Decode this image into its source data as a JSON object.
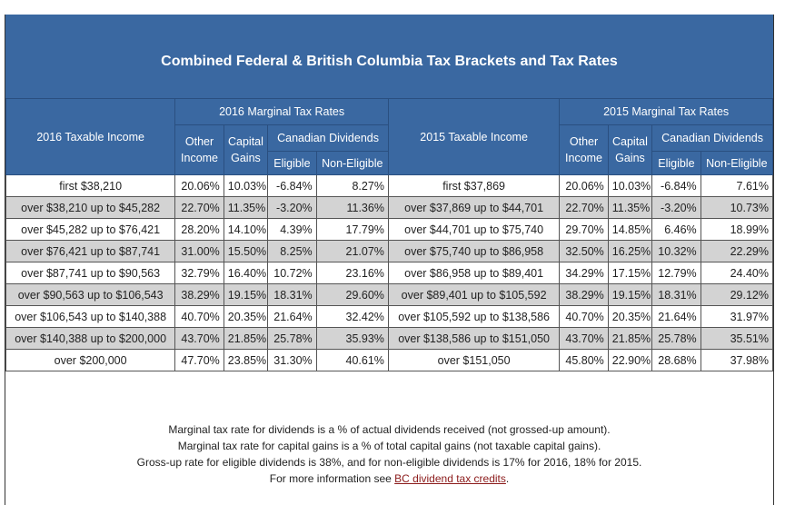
{
  "title": "Combined Federal & British Columbia Tax Brackets and Tax Rates",
  "headers": {
    "income_2016": "2016 Taxable Income",
    "rates_2016": "2016 Marginal Tax Rates",
    "income_2015": "2015 Taxable Income",
    "rates_2015": "2015 Marginal Tax Rates",
    "other_income_1": "Other",
    "other_income_2": "Income",
    "capital_gains_1": "Capital",
    "capital_gains_2": "Gains",
    "canadian_dividends": "Canadian Dividends",
    "eligible": "Eligible",
    "non_eligible": "Non-Eligible"
  },
  "rows": [
    {
      "inc16": "first $38,210",
      "o16": "20.06%",
      "c16": "10.03%",
      "e16": "-6.84%",
      "n16": "8.27%",
      "inc15": "first $37,869",
      "o15": "20.06%",
      "c15": "10.03%",
      "e15": "-6.84%",
      "n15": "7.61%"
    },
    {
      "inc16": "over $38,210 up to $45,282",
      "o16": "22.70%",
      "c16": "11.35%",
      "e16": "-3.20%",
      "n16": "11.36%",
      "inc15": "over $37,869 up to $44,701",
      "o15": "22.70%",
      "c15": "11.35%",
      "e15": "-3.20%",
      "n15": "10.73%"
    },
    {
      "inc16": "over $45,282 up to $76,421",
      "o16": "28.20%",
      "c16": "14.10%",
      "e16": "4.39%",
      "n16": "17.79%",
      "inc15": "over $44,701 up to $75,740",
      "o15": "29.70%",
      "c15": "14.85%",
      "e15": "6.46%",
      "n15": "18.99%"
    },
    {
      "inc16": "over $76,421 up to $87,741",
      "o16": "31.00%",
      "c16": "15.50%",
      "e16": "8.25%",
      "n16": "21.07%",
      "inc15": "over $75,740 up to $86,958",
      "o15": "32.50%",
      "c15": "16.25%",
      "e15": "10.32%",
      "n15": "22.29%"
    },
    {
      "inc16": "over $87,741 up to $90,563",
      "o16": "32.79%",
      "c16": "16.40%",
      "e16": "10.72%",
      "n16": "23.16%",
      "inc15": "over $86,958 up to $89,401",
      "o15": "34.29%",
      "c15": "17.15%",
      "e15": "12.79%",
      "n15": "24.40%"
    },
    {
      "inc16": "over $90,563 up to $106,543",
      "o16": "38.29%",
      "c16": "19.15%",
      "e16": "18.31%",
      "n16": "29.60%",
      "inc15": "over $89,401 up to $105,592",
      "o15": "38.29%",
      "c15": "19.15%",
      "e15": "18.31%",
      "n15": "29.12%"
    },
    {
      "inc16": "over $106,543 up to $140,388",
      "o16": "40.70%",
      "c16": "20.35%",
      "e16": "21.64%",
      "n16": "32.42%",
      "inc15": "over $105,592 up to $138,586",
      "o15": "40.70%",
      "c15": "20.35%",
      "e15": "21.64%",
      "n15": "31.97%"
    },
    {
      "inc16": "over $140,388 up to $200,000",
      "o16": "43.70%",
      "c16": "21.85%",
      "e16": "25.78%",
      "n16": "35.93%",
      "inc15": "over $138,586 up to $151,050",
      "o15": "43.70%",
      "c15": "21.85%",
      "e15": "25.78%",
      "n15": "35.51%"
    },
    {
      "inc16": "over $200,000",
      "o16": "47.70%",
      "c16": "23.85%",
      "e16": "31.30%",
      "n16": "40.61%",
      "inc15": "over $151,050",
      "o15": "45.80%",
      "c15": "22.90%",
      "e15": "28.68%",
      "n15": "37.98%"
    }
  ],
  "notes": {
    "line1": "Marginal tax rate for dividends is a % of actual dividends received (not grossed-up amount).",
    "line2": "Marginal tax rate for capital gains is a % of total capital gains (not taxable capital gains).",
    "line3": "Gross-up rate for eligible dividends is 38%, and for non-eligible dividends is 17% for 2016, 18% for 2015.",
    "line4_prefix": "For more information see ",
    "line4_link": "BC dividend tax credits",
    "line4_suffix": "."
  },
  "colors": {
    "header_bg": "#3a68a1",
    "shaded_row": "#d3d3d3",
    "link": "#8b1a1a"
  }
}
